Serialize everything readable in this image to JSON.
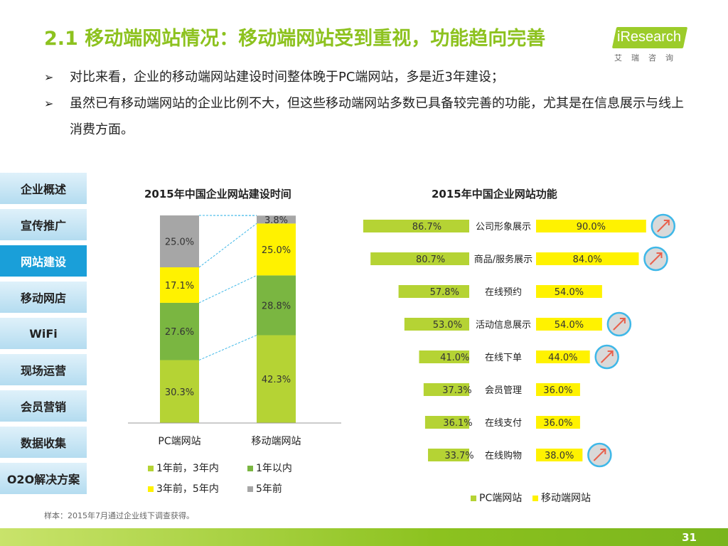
{
  "header": {
    "title": "2.1 移动端网站情况：移动端网站受到重视，功能趋向完善",
    "logo_brand": "iResearch",
    "logo_cn": "艾瑞咨询"
  },
  "bullets": [
    {
      "mark": "➢",
      "text": "对比来看，企业的移动端网站建设时间整体晚于PC端网站，多是近3年建设；"
    },
    {
      "mark": "➢",
      "text": "虽然已有移动端网站的企业比例不大，但这些移动端网站多数已具备较完善的功能，尤其是在信息展示与线上消费方面。"
    }
  ],
  "nav": {
    "items": [
      "企业概述",
      "宣传推广",
      "网站建设",
      "移动网店",
      "WiFi",
      "现场运营",
      "会员营销",
      "数据收集",
      "O2O解决方案"
    ],
    "active_index": 2
  },
  "colors": {
    "accent": "#8dc21f",
    "c1": "#b5d334",
    "c2": "#7ab641",
    "c3": "#fff200",
    "c4": "#a6a6a6",
    "nav_active": "#1a9fd9"
  },
  "chart_data": [
    {
      "type": "bar",
      "stacked": true,
      "title": "2015年中国企业网站建设时间",
      "categories": [
        "PC端网站",
        "移动端网站"
      ],
      "series": [
        {
          "name": "1年前，3年内",
          "values": [
            30.3,
            42.3
          ]
        },
        {
          "name": "1年以内",
          "values": [
            27.6,
            28.8
          ]
        },
        {
          "name": "3年前，5年内",
          "values": [
            17.1,
            25.0
          ]
        },
        {
          "name": "5年前",
          "values": [
            25.0,
            3.8
          ]
        }
      ],
      "value_labels": [
        [
          "30.3%",
          "27.6%",
          "17.1%",
          "25.0%"
        ],
        [
          "42.3%",
          "28.8%",
          "25.0%",
          "3.8%"
        ]
      ],
      "ylim": [
        0,
        100
      ]
    },
    {
      "type": "bar",
      "orientation": "horizontal-butterfly",
      "title": "2015年中国企业网站功能",
      "categories": [
        "公司形象展示",
        "商品/服务展示",
        "在线预约",
        "活动信息展示",
        "在线下单",
        "会员管理",
        "在线支付",
        "在线购物"
      ],
      "series": [
        {
          "name": "PC端网站",
          "values": [
            86.7,
            80.7,
            57.8,
            53.0,
            41.0,
            37.3,
            36.1,
            33.7
          ],
          "labels": [
            "86.7%",
            "80.7%",
            "57.8%",
            "53.0%",
            "41.0%",
            "37.3%",
            "36.1%",
            "33.7%"
          ]
        },
        {
          "name": "移动端网站",
          "values": [
            90.0,
            84.0,
            54.0,
            54.0,
            44.0,
            36.0,
            36.0,
            38.0
          ],
          "labels": [
            "90.0%",
            "84.0%",
            "54.0%",
            "54.0%",
            "44.0%",
            "36.0%",
            "36.0%",
            "38.0%"
          ]
        }
      ],
      "highlight_up": [
        true,
        true,
        false,
        true,
        true,
        false,
        false,
        true
      ]
    }
  ],
  "footnote": "样本：2015年7月通过企业线下调查获得。",
  "page_number": "31"
}
